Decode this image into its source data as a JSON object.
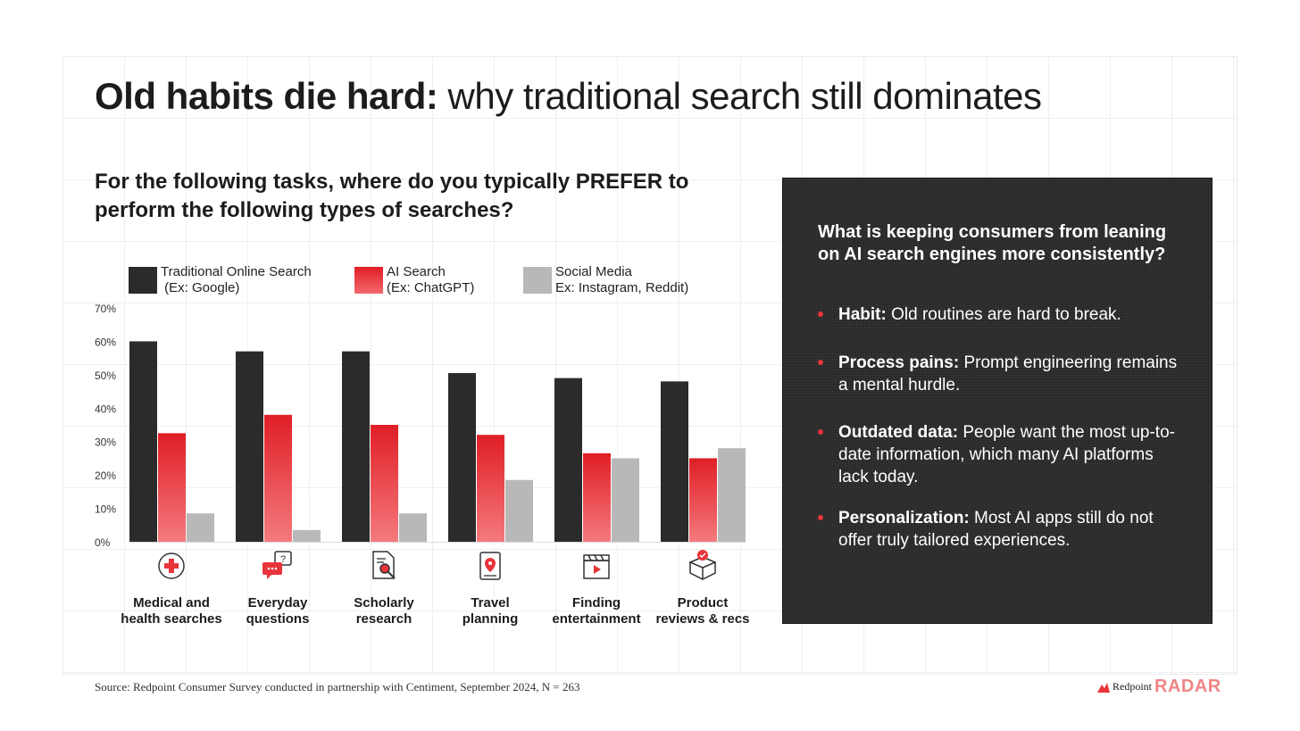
{
  "title": {
    "bold": "Old habits die hard:",
    "light": " why traditional search still dominates"
  },
  "question": "For the following tasks, where do you typically PREFER to perform the following types of searches?",
  "colors": {
    "traditional": "#2b2b2b",
    "ai": "#e8343a",
    "social": "#b8b8b8",
    "accent": "#e8343a",
    "panel": "#2a2a2a"
  },
  "legend": [
    {
      "label": "Traditional Online Search\n (Ex: Google)",
      "icon": "black-swatch"
    },
    {
      "label": "AI Search\n(Ex: ChatGPT)",
      "icon": "red-swatch"
    },
    {
      "label": "Social Media\nEx: Instagram, Reddit)",
      "icon": "gray-swatch"
    }
  ],
  "chart_data": {
    "type": "bar",
    "categories": [
      "Medical and health searches",
      "Everyday questions",
      "Scholarly research",
      "Travel planning",
      "Finding entertainment",
      "Product reviews & recs"
    ],
    "category_lines": [
      [
        "Medical and",
        "health searches"
      ],
      [
        "Everyday",
        "questions"
      ],
      [
        "Scholarly",
        "research"
      ],
      [
        "Travel",
        "planning"
      ],
      [
        "Finding",
        "entertainment"
      ],
      [
        "Product",
        "reviews & recs"
      ]
    ],
    "category_icons": [
      "medical-cross-icon",
      "chat-question-icon",
      "document-search-icon",
      "map-pin-icon",
      "clapperboard-icon",
      "product-box-icon"
    ],
    "series": [
      {
        "name": "Traditional Online Search (Ex: Google)",
        "values": [
          60,
          57,
          57,
          50.5,
          49,
          48
        ]
      },
      {
        "name": "AI Search (Ex: ChatGPT)",
        "values": [
          32.5,
          38,
          35,
          32,
          26.5,
          25
        ]
      },
      {
        "name": "Social Media Ex: Instagram, Reddit)",
        "values": [
          8.5,
          3.5,
          8.5,
          18.5,
          25,
          28
        ]
      }
    ],
    "yticks": [
      "0%",
      "10%",
      "20%",
      "30%",
      "40%",
      "50%",
      "60%",
      "70%"
    ],
    "ylim": [
      0,
      70
    ],
    "grid": false,
    "legend_position": "top"
  },
  "panel": {
    "question": "What is keeping consumers from leaning on AI search engines more consistently?",
    "bullets": [
      {
        "bold": "Habit:",
        "text": " Old routines are hard to break."
      },
      {
        "bold": "Process pains:",
        "text": " Prompt engineering remains a mental hurdle."
      },
      {
        "bold": "Outdated data:",
        "text": " People want the most up-to-date information, which many AI platforms lack today."
      },
      {
        "bold": "Personalization:",
        "text": " Most AI apps still do not offer truly tailored experiences."
      }
    ]
  },
  "source": "Source: Redpoint Consumer Survey conducted in partnership with Centiment, September 2024, N = 263",
  "logo": {
    "a": "Redpoint",
    "b": "RADAR"
  }
}
